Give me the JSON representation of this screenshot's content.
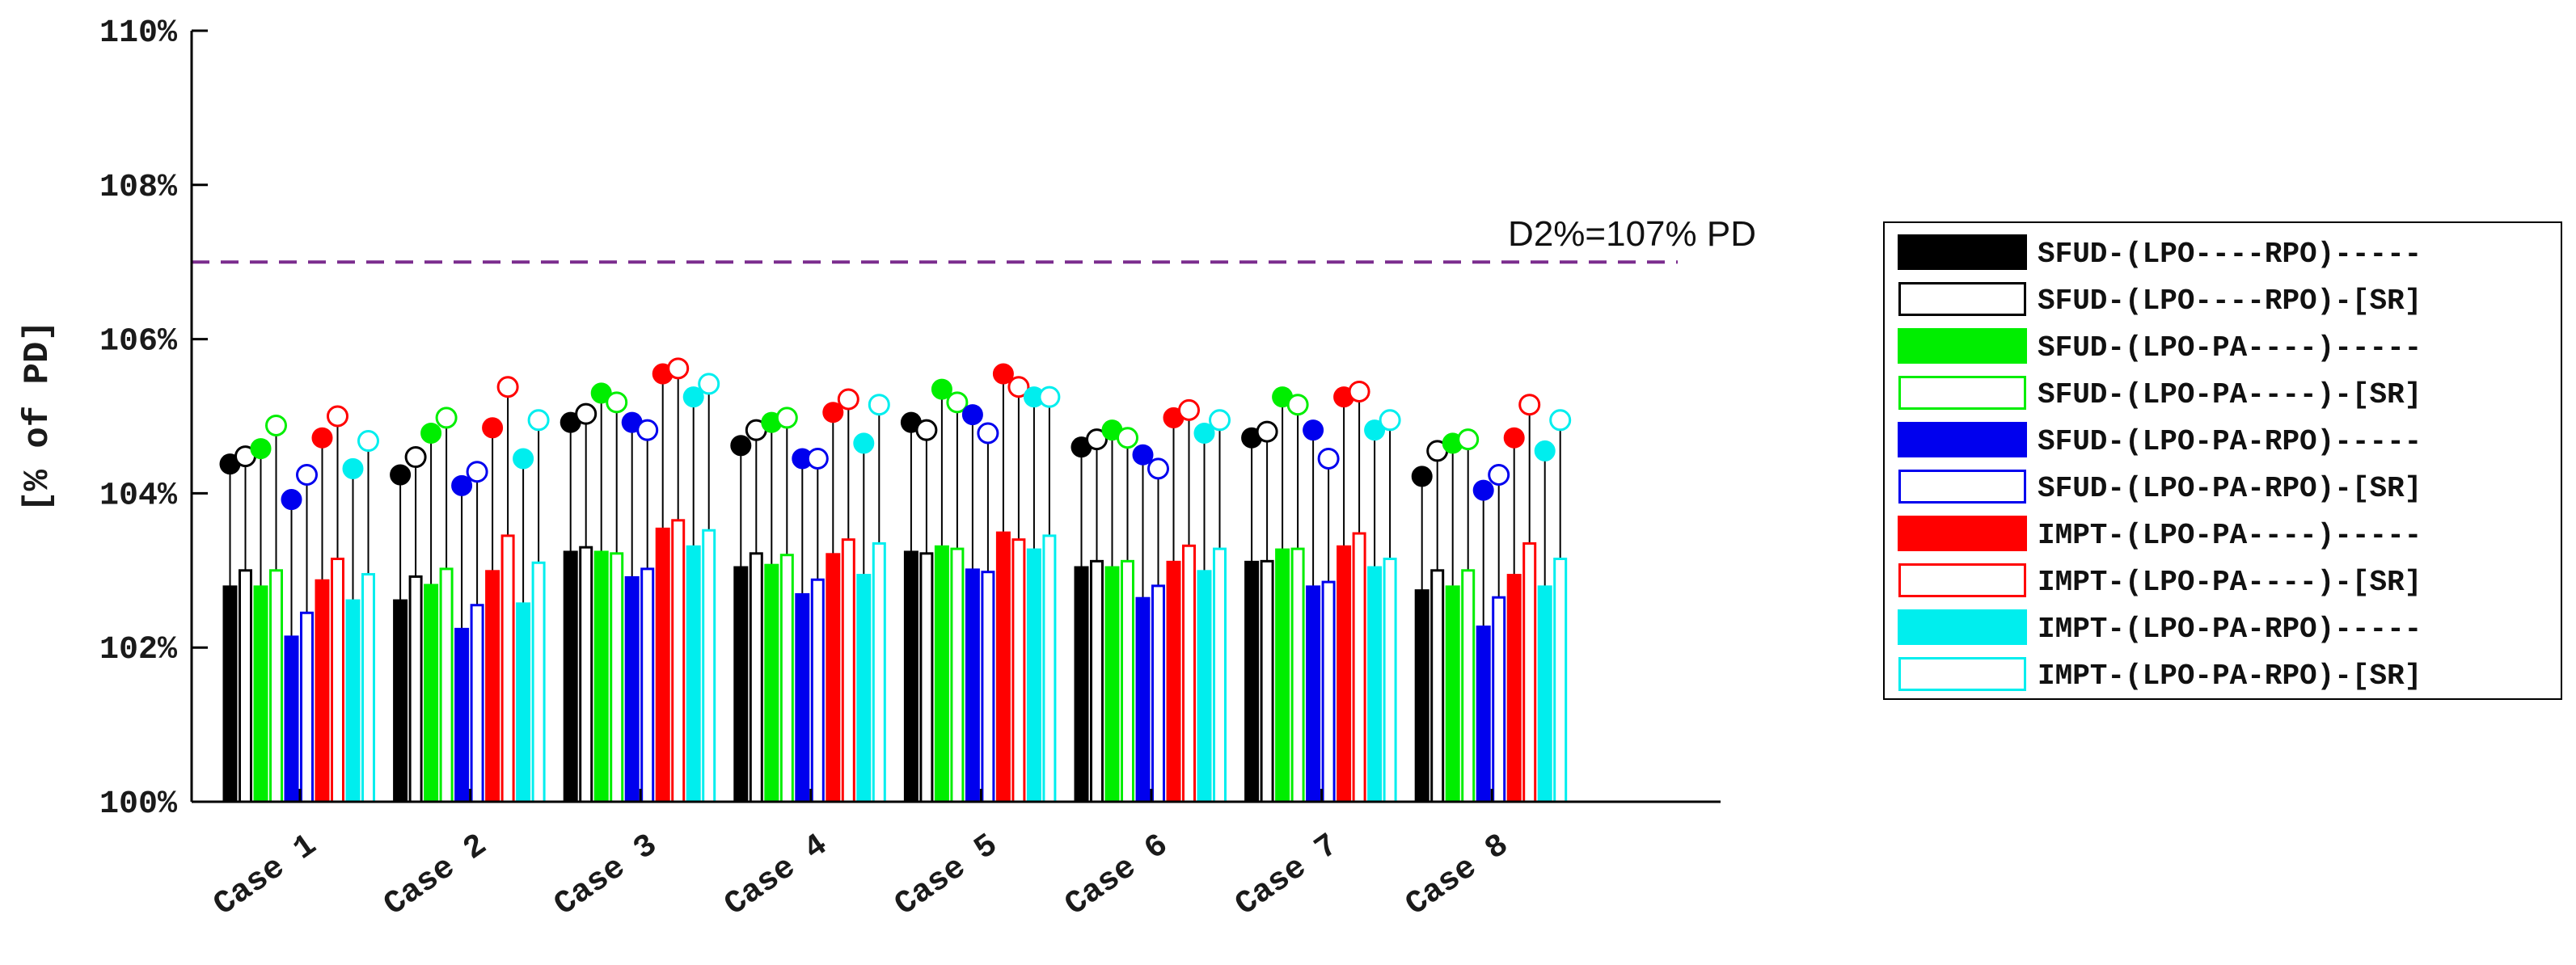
{
  "chart_data": {
    "type": "bar",
    "categories": [
      "Case  1",
      "Case  2",
      "Case  3",
      "Case  4",
      "Case  5",
      "Case  6",
      "Case  7",
      "Case  8"
    ],
    "ylabel": "[% of PD]",
    "ylim": [
      100,
      110
    ],
    "yticks": [
      100,
      102,
      104,
      106,
      108,
      110
    ],
    "ytick_labels": [
      "100%",
      "102%",
      "104%",
      "106%",
      "108%",
      "110%"
    ],
    "reference_line": {
      "value": 107,
      "label": "D2%=107% PD",
      "color": "#7b2d8e",
      "style": "dashed"
    },
    "legend_position": "right",
    "series": [
      {
        "name": "SFUD-(LPO----RPO)-----",
        "color": "#000000",
        "filled": true,
        "bar_values": [
          102.8,
          102.62,
          103.25,
          103.05,
          103.25,
          103.05,
          103.12,
          102.75
        ],
        "marker_values": [
          104.38,
          104.24,
          104.92,
          104.62,
          104.92,
          104.6,
          104.72,
          104.22
        ]
      },
      {
        "name": "SFUD-(LPO----RPO)-[SR]",
        "color": "#000000",
        "filled": false,
        "bar_values": [
          103.0,
          102.92,
          103.3,
          103.22,
          103.22,
          103.12,
          103.12,
          103.0
        ],
        "marker_values": [
          104.48,
          104.47,
          105.03,
          104.82,
          104.82,
          104.7,
          104.8,
          104.55
        ]
      },
      {
        "name": "SFUD-(LPO-PA----)-----",
        "color": "#00ee00",
        "filled": true,
        "bar_values": [
          102.8,
          102.82,
          103.25,
          103.08,
          103.32,
          103.05,
          103.28,
          102.8
        ],
        "marker_values": [
          104.58,
          104.78,
          105.3,
          104.92,
          105.35,
          104.82,
          105.25,
          104.65
        ]
      },
      {
        "name": "SFUD-(LPO-PA----)-[SR]",
        "color": "#00ee00",
        "filled": false,
        "bar_values": [
          103.0,
          103.02,
          103.22,
          103.2,
          103.28,
          103.12,
          103.28,
          103.0
        ],
        "marker_values": [
          104.88,
          104.98,
          105.18,
          104.98,
          105.18,
          104.72,
          105.15,
          104.7
        ]
      },
      {
        "name": "SFUD-(LPO-PA-RPO)-----",
        "color": "#0000ee",
        "filled": true,
        "bar_values": [
          102.15,
          102.25,
          102.92,
          102.7,
          103.02,
          102.65,
          102.8,
          102.28
        ],
        "marker_values": [
          103.92,
          104.1,
          104.92,
          104.45,
          105.02,
          104.5,
          104.82,
          104.04
        ]
      },
      {
        "name": "SFUD-(LPO-PA-RPO)-[SR]",
        "color": "#0000ee",
        "filled": false,
        "bar_values": [
          102.45,
          102.55,
          103.02,
          102.88,
          102.98,
          102.8,
          102.85,
          102.65
        ],
        "marker_values": [
          104.24,
          104.28,
          104.82,
          104.45,
          104.78,
          104.32,
          104.45,
          104.24
        ]
      },
      {
        "name": "IMPT-(LPO-PA----)-----",
        "color": "#ff0000",
        "filled": true,
        "bar_values": [
          102.88,
          103.0,
          103.55,
          103.22,
          103.5,
          103.12,
          103.32,
          102.95
        ],
        "marker_values": [
          104.72,
          104.85,
          105.55,
          105.05,
          105.55,
          104.98,
          105.25,
          104.72
        ]
      },
      {
        "name": "IMPT-(LPO-PA----)-[SR]",
        "color": "#ff0000",
        "filled": false,
        "bar_values": [
          103.15,
          103.45,
          103.65,
          103.4,
          103.4,
          103.32,
          103.48,
          103.35
        ],
        "marker_values": [
          105.0,
          105.38,
          105.62,
          105.22,
          105.38,
          105.08,
          105.32,
          105.15
        ]
      },
      {
        "name": "IMPT-(LPO-PA-RPO)-----",
        "color": "#00eeee",
        "filled": true,
        "bar_values": [
          102.62,
          102.58,
          103.32,
          102.95,
          103.28,
          103.0,
          103.05,
          102.8
        ],
        "marker_values": [
          104.32,
          104.45,
          105.25,
          104.65,
          105.25,
          104.78,
          104.82,
          104.55
        ]
      },
      {
        "name": "IMPT-(LPO-PA-RPO)-[SR]",
        "color": "#00eeee",
        "filled": false,
        "bar_values": [
          102.95,
          103.1,
          103.52,
          103.35,
          103.45,
          103.28,
          103.15,
          103.15
        ],
        "marker_values": [
          104.68,
          104.95,
          105.42,
          105.15,
          105.25,
          104.95,
          104.95,
          104.95
        ]
      }
    ]
  }
}
